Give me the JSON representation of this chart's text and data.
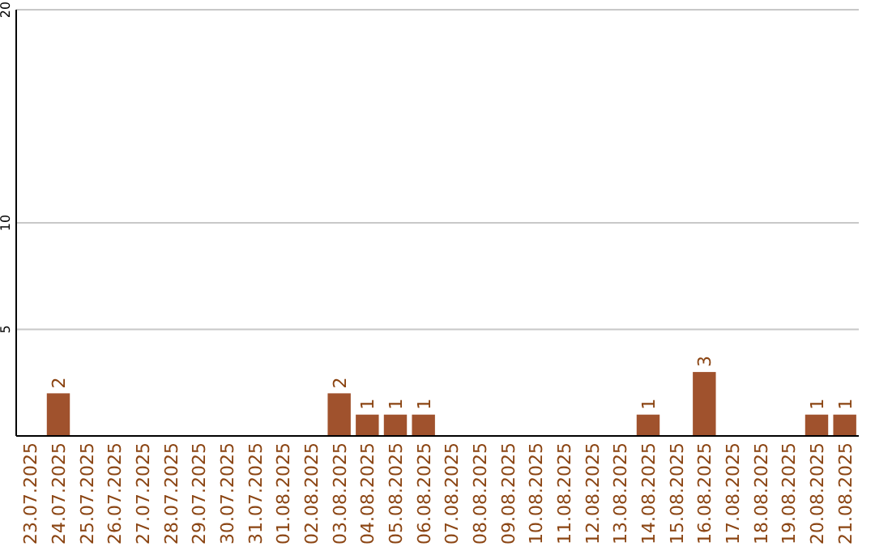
{
  "chart_data": {
    "type": "bar",
    "categories": [
      "23.07.2025",
      "24.07.2025",
      "25.07.2025",
      "26.07.2025",
      "27.07.2025",
      "28.07.2025",
      "29.07.2025",
      "30.07.2025",
      "31.07.2025",
      "01.08.2025",
      "02.08.2025",
      "03.08.2025",
      "04.08.2025",
      "05.08.2025",
      "06.08.2025",
      "07.08.2025",
      "08.08.2025",
      "09.08.2025",
      "10.08.2025",
      "11.08.2025",
      "12.08.2025",
      "13.08.2025",
      "14.08.2025",
      "15.08.2025",
      "16.08.2025",
      "17.08.2025",
      "18.08.2025",
      "19.08.2025",
      "20.08.2025",
      "21.08.2025"
    ],
    "values": [
      0,
      2,
      0,
      0,
      0,
      0,
      0,
      0,
      0,
      0,
      0,
      2,
      1,
      1,
      1,
      0,
      0,
      0,
      0,
      0,
      0,
      0,
      1,
      0,
      3,
      0,
      0,
      0,
      1,
      1
    ],
    "value_labels": [
      null,
      "2",
      null,
      null,
      null,
      null,
      null,
      null,
      null,
      null,
      null,
      "2",
      "1",
      "1",
      "1",
      null,
      null,
      null,
      null,
      null,
      null,
      null,
      "1",
      null,
      "3",
      null,
      null,
      null,
      "1",
      "1"
    ],
    "color": "#a0522d",
    "ylim": [
      0,
      20
    ],
    "yticks": [
      5,
      10,
      20
    ],
    "grid": "y"
  }
}
